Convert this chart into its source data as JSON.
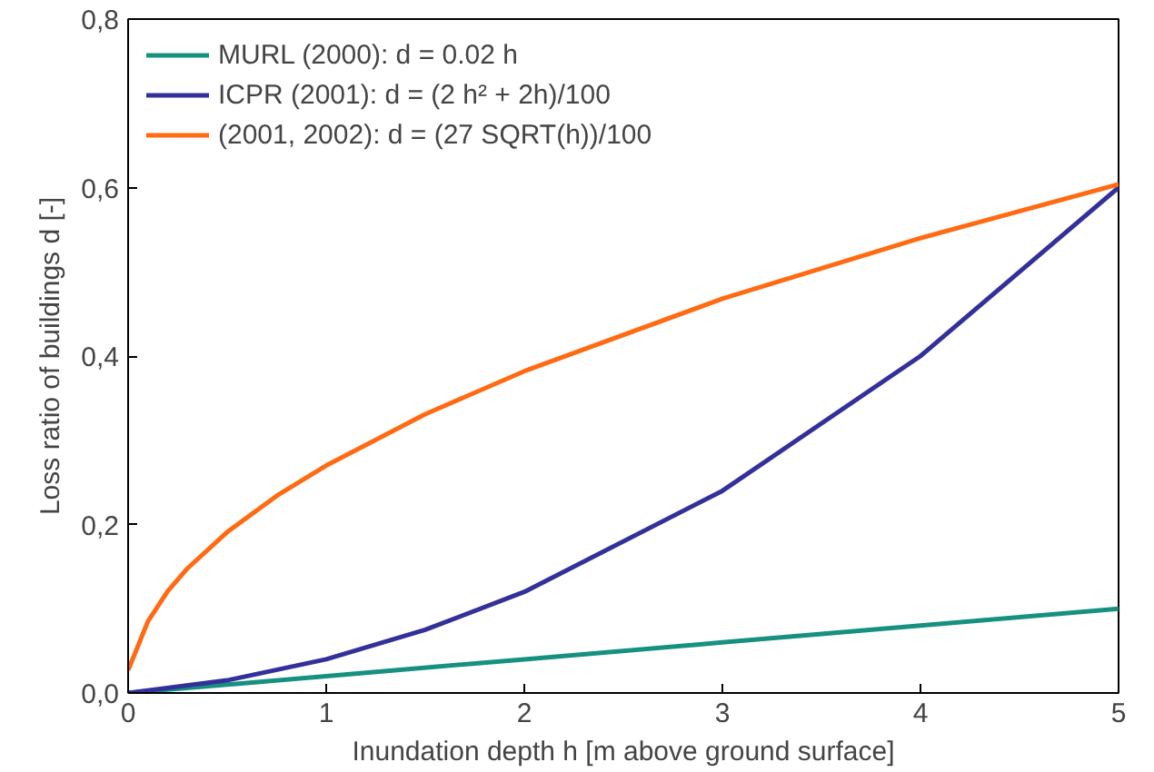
{
  "chart_data": {
    "type": "line",
    "xlabel": "Inundation depth h [m above ground surface]",
    "ylabel": "Loss ratio of buildings d [-]",
    "xlim": [
      0,
      5
    ],
    "xticks": [
      0,
      1,
      2,
      3,
      4,
      5
    ],
    "ylim": [
      0,
      0.8
    ],
    "yticks": [
      {
        "value": 0,
        "label": "0,0"
      },
      {
        "value": 0.2,
        "label": "0,2"
      },
      {
        "value": 0.4,
        "label": "0,4"
      },
      {
        "value": 0.6,
        "label": "0,6"
      },
      {
        "value": 0.8,
        "label": "0,8"
      }
    ],
    "grid": false,
    "legend": "top left",
    "marker": "none",
    "line_style": "solid",
    "series": [
      {
        "name": "MURL (2000): d = 0.02 h",
        "color": "#16907f",
        "x": [
          0,
          1,
          2,
          3,
          4,
          5
        ],
        "values": [
          0,
          0.02,
          0.04,
          0.06,
          0.08,
          0.1
        ]
      },
      {
        "name": "ICPR (2001): d = (2 h² + 2h)/100",
        "color": "#33309a",
        "x": [
          0,
          0.5,
          1,
          1.5,
          2,
          3,
          4,
          5
        ],
        "values": [
          0,
          0.015,
          0.04,
          0.075,
          0.12,
          0.24,
          0.4,
          0.6
        ]
      },
      {
        "name": "(2001, 2002): d = (27 SQRT(h))/100",
        "color": "#ff6a13",
        "x": [
          0,
          0.1,
          0.2,
          0.3,
          0.5,
          0.75,
          1,
          1.5,
          2,
          3,
          4,
          5
        ],
        "values": [
          0.027,
          0.085,
          0.121,
          0.148,
          0.191,
          0.234,
          0.27,
          0.331,
          0.382,
          0.468,
          0.54,
          0.604
        ]
      }
    ]
  }
}
